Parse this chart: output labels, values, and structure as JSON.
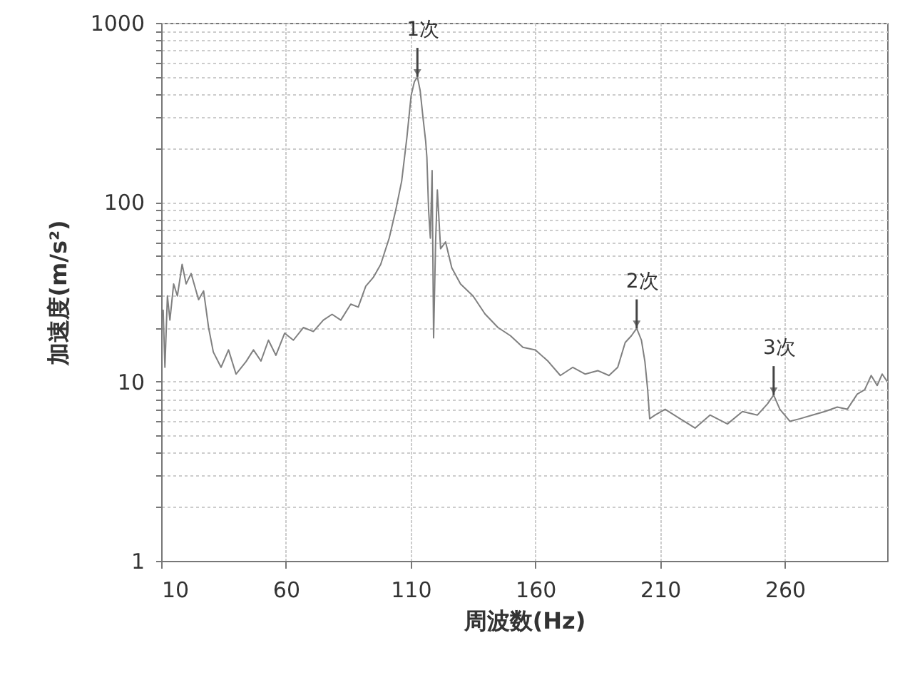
{
  "chart_data": {
    "type": "line",
    "xlabel": "周波数(Hz)",
    "ylabel": "加速度(m/s²)",
    "x": [
      10.8,
      11.5,
      12.5,
      13.5,
      15,
      16.5,
      18.4,
      20,
      22,
      25,
      27,
      29,
      30.9,
      34,
      37,
      40,
      44,
      47,
      50,
      53,
      56,
      59.5,
      63,
      67,
      71,
      75,
      78.5,
      82,
      86,
      89,
      92,
      95,
      98,
      101.4,
      104,
      106.4,
      108.5,
      110.2,
      111.5,
      112.7,
      113.8,
      115,
      116,
      116.5,
      117.2,
      117.9,
      118.6,
      119.2,
      120,
      120.7,
      122,
      124,
      126.5,
      130,
      135,
      139.8,
      145,
      150,
      155,
      160,
      165,
      170,
      175,
      180,
      185,
      189.5,
      193,
      196,
      198.5,
      200.6,
      202.5,
      203.9,
      205,
      205.8,
      208,
      212,
      218,
      224,
      230,
      237,
      243,
      249,
      253,
      255.5,
      258,
      262,
      266,
      271,
      276,
      281,
      285,
      289,
      292,
      294.6,
      297,
      299,
      301
    ],
    "values": [
      25,
      12,
      30,
      22,
      35,
      30,
      45,
      35,
      40,
      28.6,
      32,
      20,
      14.6,
      12,
      15,
      11,
      12.9,
      15,
      13,
      17,
      14,
      18.6,
      17,
      20,
      19,
      22,
      23.7,
      22,
      27,
      26,
      34,
      38,
      45,
      63,
      90,
      131,
      230,
      394,
      470,
      500,
      420,
      292,
      220,
      178,
      90,
      63,
      150,
      17.5,
      60,
      117,
      55,
      60,
      43,
      35,
      30,
      23.8,
      20,
      18,
      15.5,
      15,
      13,
      10.8,
      12,
      11,
      11.5,
      10.8,
      12,
      16.5,
      18,
      19.8,
      17,
      12.9,
      9,
      6.2,
      6.5,
      7,
      6.2,
      5.5,
      6.5,
      5.8,
      6.8,
      6.5,
      7.5,
      8.4,
      7,
      6,
      6.2,
      6.5,
      6.8,
      7.2,
      7,
      8.5,
      9,
      10.8,
      9.5,
      11,
      10
    ],
    "color": "#808080",
    "xlim": [
      10,
      301
    ],
    "xticks": [
      10,
      60,
      110,
      160,
      210,
      260
    ],
    "log": true,
    "ylim": [
      1,
      1000
    ],
    "yticks": [
      1,
      {
        "value": 2,
        "label": null
      },
      {
        "value": 3,
        "label": null
      },
      {
        "value": 4,
        "label": null
      },
      {
        "value": 5,
        "label": null
      },
      {
        "value": 6,
        "label": null
      },
      {
        "value": 7,
        "label": null
      },
      {
        "value": 8,
        "label": null
      },
      {
        "value": 9,
        "label": null
      },
      10,
      {
        "value": 20,
        "label": null
      },
      {
        "value": 30,
        "label": null
      },
      {
        "value": 40,
        "label": null
      },
      {
        "value": 50,
        "label": null
      },
      {
        "value": 60,
        "label": null
      },
      {
        "value": 70,
        "label": null
      },
      {
        "value": 80,
        "label": null
      },
      {
        "value": 90,
        "label": null
      },
      100,
      {
        "value": 200,
        "label": null
      },
      {
        "value": 300,
        "label": null
      },
      {
        "value": 400,
        "label": null
      },
      {
        "value": 500,
        "label": null
      },
      {
        "value": 600,
        "label": null
      },
      {
        "value": 700,
        "label": null
      },
      {
        "value": 800,
        "label": null
      },
      {
        "value": 900,
        "label": null
      },
      1000
    ],
    "grid": true,
    "annotations": [
      {
        "text": "1次",
        "x": 112.7,
        "y": 500
      },
      {
        "text": "2次",
        "x": 200.6,
        "y": 19.8
      },
      {
        "text": "3次",
        "x": 255.5,
        "y": 8.4
      }
    ]
  }
}
